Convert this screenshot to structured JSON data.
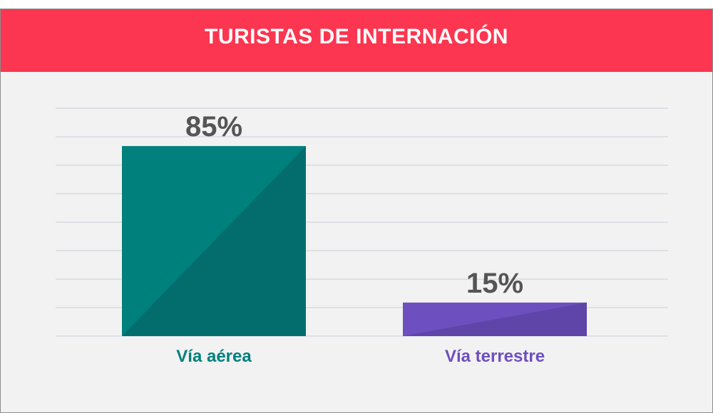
{
  "colors": {
    "header": "#fc3650",
    "background": "#f2f2f2",
    "grid": "#c9ced8",
    "value_text": "#555555",
    "bars": [
      {
        "main": "#00807d",
        "shade": "#036d6d"
      },
      {
        "main": "#6e4fbf",
        "shade": "#5f45a8"
      }
    ]
  },
  "chart_data": {
    "type": "bar",
    "title": "TURISTAS DE INTERNACIÓN",
    "categories": [
      "Vía aérea",
      "Vía terrestre"
    ],
    "values": [
      85,
      15
    ],
    "value_labels": [
      "85%",
      "15%"
    ],
    "xlabel": "",
    "ylabel": "",
    "ylim": [
      0,
      100
    ],
    "grid": true,
    "legend": "none"
  }
}
